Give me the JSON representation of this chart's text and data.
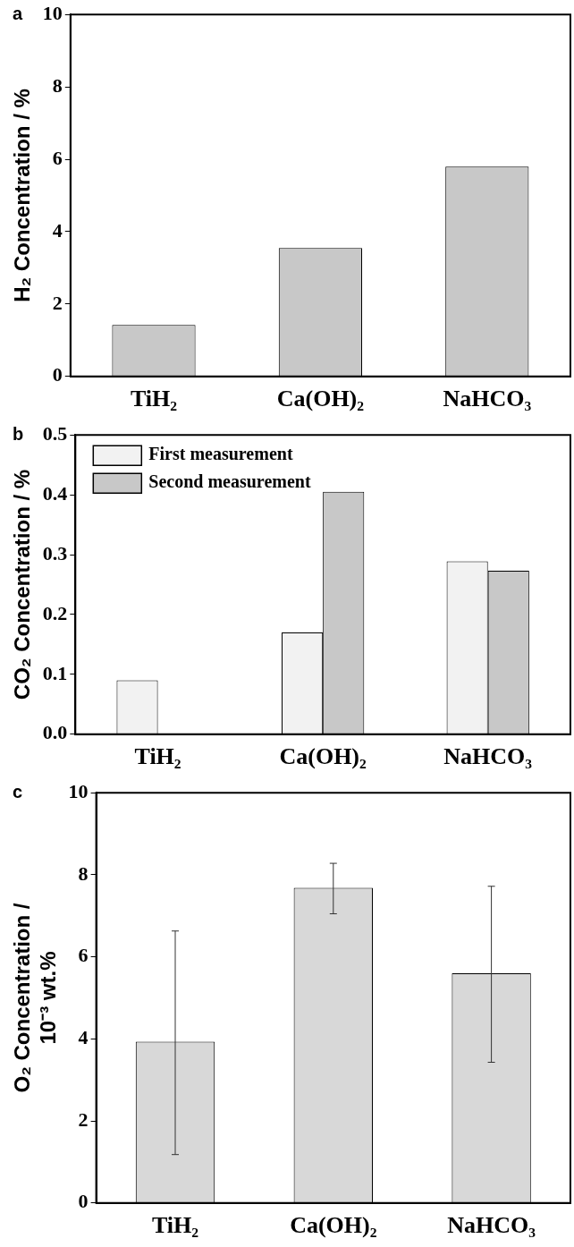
{
  "chart_data": [
    {
      "type": "bar",
      "annotations": [
        "a"
      ],
      "ylabel": "H₂ Concentration / %",
      "categories": [
        "TiH₂",
        "Ca(OH)₂",
        "NaHCO₃"
      ],
      "values": [
        1.42,
        3.55,
        5.8
      ],
      "color": "#c8c8c8",
      "ylim": [
        0,
        10
      ],
      "yticks": [
        0,
        2,
        4,
        6,
        8,
        10
      ],
      "grid": false
    },
    {
      "type": "bar",
      "annotations": [
        "b"
      ],
      "ylabel": "CO₂ Concentration / %",
      "categories": [
        "TiH₂",
        "Ca(OH)₂",
        "NaHCO₃"
      ],
      "series": [
        {
          "name": "First measurement",
          "color": "#f2f2f2",
          "values": [
            0.09,
            0.17,
            0.289
          ]
        },
        {
          "name": "Second measurement",
          "color": "#c8c8c8",
          "values": [
            null,
            0.405,
            0.273
          ]
        }
      ],
      "ylim": [
        0,
        0.5
      ],
      "yticks": [
        {
          "value": 0,
          "label": "0.0"
        },
        0.1,
        0.2,
        0.3,
        0.4,
        0.5
      ],
      "legend": "top left",
      "grid": false
    },
    {
      "type": "bar",
      "annotations": [
        "c"
      ],
      "ylabel": "O₂ Concentration / 10⁻³ wt.%",
      "categories": [
        "TiH₂",
        "Ca(OH)₂",
        "NaHCO₃"
      ],
      "values": [
        3.93,
        7.68,
        5.6
      ],
      "errors": [
        [
          1.18,
          6.63
        ],
        [
          7.05,
          8.28
        ],
        [
          3.43,
          7.72
        ]
      ],
      "color": "#d8d8d8",
      "ylim": [
        0,
        10
      ],
      "yticks": [
        0,
        2,
        4,
        6,
        8,
        10
      ],
      "grid": false
    }
  ]
}
